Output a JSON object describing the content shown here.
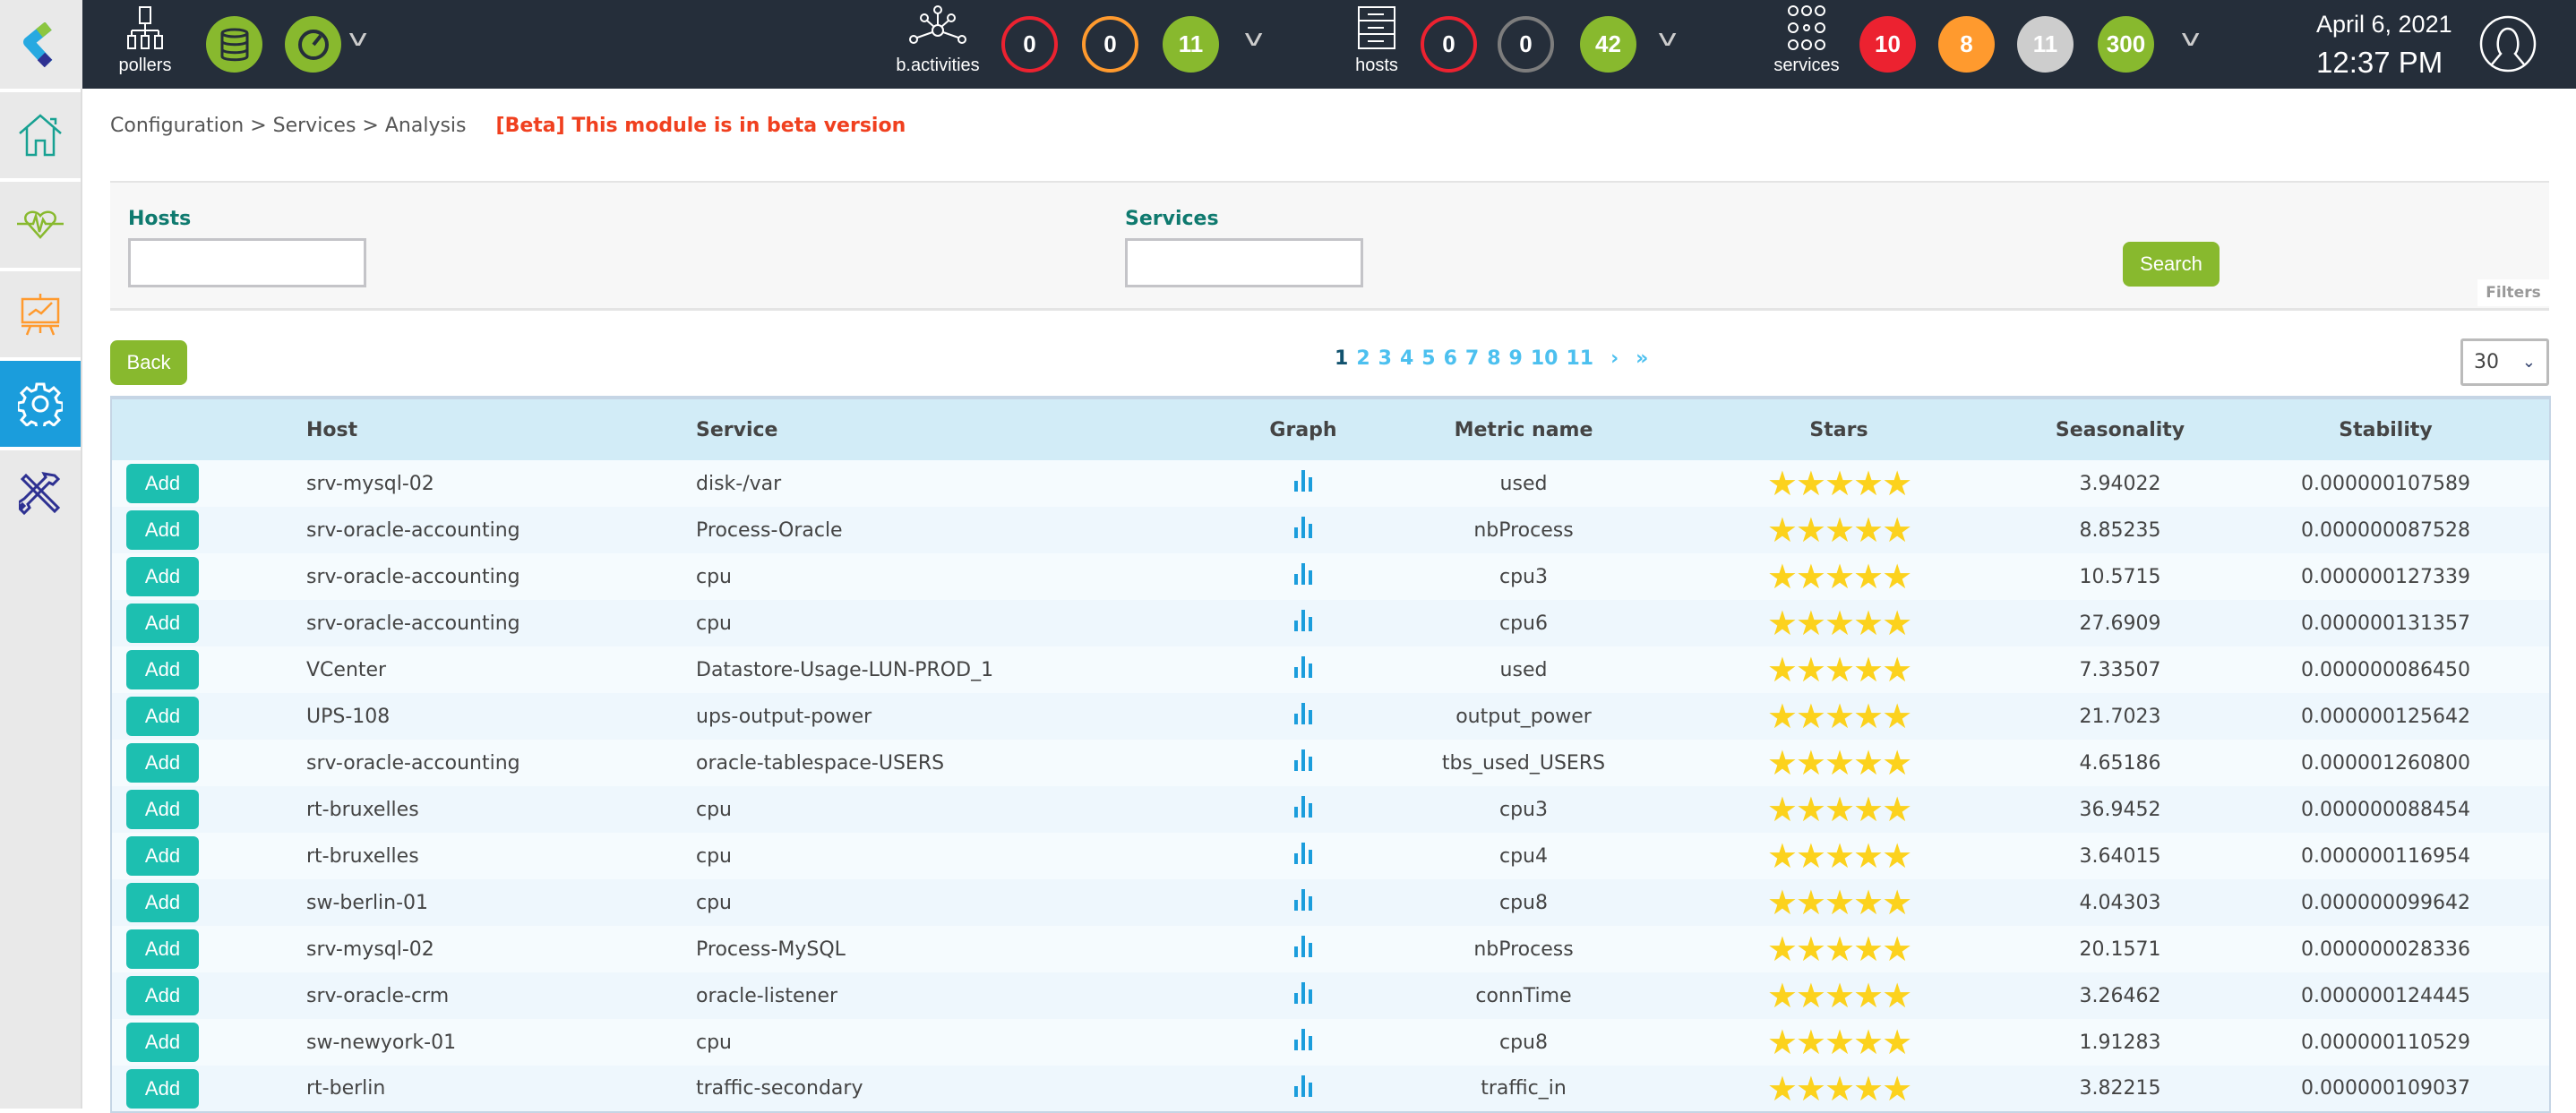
{
  "topbar": {
    "pollers_label": "pollers",
    "bactivities": {
      "label": "b.activities",
      "counts": [
        "0",
        "0",
        "11"
      ]
    },
    "hosts": {
      "label": "hosts",
      "counts": [
        "0",
        "0",
        "42"
      ]
    },
    "services": {
      "label": "services",
      "counts": [
        "10",
        "8",
        "11",
        "300"
      ]
    },
    "date": "April 6, 2021",
    "time": "12:37 PM"
  },
  "colors": {
    "critical": "#ec2230",
    "warning": "#ff9a2e",
    "unknown": "#cdcdcd",
    "ok": "#88b92e",
    "pending": "#7d7d7d",
    "accent": "#1b9ddc",
    "add": "#1dbfb0"
  },
  "sidebar": {
    "items": [
      {
        "icon": "home-icon"
      },
      {
        "icon": "heartbeat-icon"
      },
      {
        "icon": "chart-board-icon"
      },
      {
        "icon": "gear-icon",
        "active": true
      },
      {
        "icon": "tools-icon"
      }
    ]
  },
  "breadcrumb": {
    "items": [
      "Configuration",
      ">",
      "Services",
      ">",
      "Analysis"
    ],
    "beta": "[Beta] This module is in beta version"
  },
  "filters": {
    "hosts_label": "Hosts",
    "hosts_value": "",
    "services_label": "Services",
    "services_value": "",
    "search": "Search",
    "title": "Filters"
  },
  "back": "Back",
  "pagination": {
    "pages": [
      "1",
      "2",
      "3",
      "4",
      "5",
      "6",
      "7",
      "8",
      "9",
      "10",
      "11"
    ],
    "current": "1",
    "next": "›",
    "last": "»"
  },
  "per_page": "30",
  "table": {
    "headers": [
      "",
      "Host",
      "Service",
      "Graph",
      "Metric name",
      "Stars",
      "Seasonality",
      "Stability"
    ],
    "add_label": "Add",
    "rows": [
      {
        "host": "srv-mysql-02",
        "service": "disk-/var",
        "metric": "used",
        "stars": 5,
        "seasonality": "3.94022",
        "stability": "0.000000107589"
      },
      {
        "host": "srv-oracle-accounting",
        "service": "Process-Oracle",
        "metric": "nbProcess",
        "stars": 5,
        "seasonality": "8.85235",
        "stability": "0.000000087528"
      },
      {
        "host": "srv-oracle-accounting",
        "service": "cpu",
        "metric": "cpu3",
        "stars": 5,
        "seasonality": "10.5715",
        "stability": "0.000000127339"
      },
      {
        "host": "srv-oracle-accounting",
        "service": "cpu",
        "metric": "cpu6",
        "stars": 5,
        "seasonality": "27.6909",
        "stability": "0.000000131357"
      },
      {
        "host": "VCenter",
        "service": "Datastore-Usage-LUN-PROD_1",
        "metric": "used",
        "stars": 5,
        "seasonality": "7.33507",
        "stability": "0.000000086450"
      },
      {
        "host": "UPS-108",
        "service": "ups-output-power",
        "metric": "output_power",
        "stars": 5,
        "seasonality": "21.7023",
        "stability": "0.000000125642"
      },
      {
        "host": "srv-oracle-accounting",
        "service": "oracle-tablespace-USERS",
        "metric": "tbs_used_USERS",
        "stars": 5,
        "seasonality": "4.65186",
        "stability": "0.000001260800"
      },
      {
        "host": "rt-bruxelles",
        "service": "cpu",
        "metric": "cpu3",
        "stars": 5,
        "seasonality": "36.9452",
        "stability": "0.000000088454"
      },
      {
        "host": "rt-bruxelles",
        "service": "cpu",
        "metric": "cpu4",
        "stars": 5,
        "seasonality": "3.64015",
        "stability": "0.000000116954"
      },
      {
        "host": "sw-berlin-01",
        "service": "cpu",
        "metric": "cpu8",
        "stars": 5,
        "seasonality": "4.04303",
        "stability": "0.000000099642"
      },
      {
        "host": "srv-mysql-02",
        "service": "Process-MySQL",
        "metric": "nbProcess",
        "stars": 5,
        "seasonality": "20.1571",
        "stability": "0.000000028336"
      },
      {
        "host": "srv-oracle-crm",
        "service": "oracle-listener",
        "metric": "connTime",
        "stars": 5,
        "seasonality": "3.26462",
        "stability": "0.000000124445"
      },
      {
        "host": "sw-newyork-01",
        "service": "cpu",
        "metric": "cpu8",
        "stars": 5,
        "seasonality": "1.91283",
        "stability": "0.000000110529"
      },
      {
        "host": "rt-berlin",
        "service": "traffic-secondary",
        "metric": "traffic_in",
        "stars": 5,
        "seasonality": "3.82215",
        "stability": "0.000000109037"
      }
    ]
  }
}
